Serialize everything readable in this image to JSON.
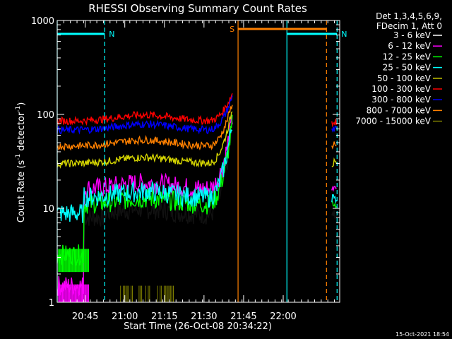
{
  "chart_data": {
    "type": "line",
    "title": "RHESSI Observing Summary Count Rates",
    "xlabel": "Start Time (26-Oct-08 20:34:22)",
    "ylabel_main": "Count Rate (s",
    "ylabel_sup1": "-1",
    "ylabel_mid": " detector",
    "ylabel_sup2": "-1",
    "ylabel_end": ")",
    "yscale": "log",
    "ylim": [
      1,
      1000
    ],
    "xlim_minutes": [
      0,
      107
    ],
    "xticks": [
      {
        "label": "20:45",
        "t": 10.6
      },
      {
        "label": "21:00",
        "t": 25.6
      },
      {
        "label": "21:15",
        "t": 40.6
      },
      {
        "label": "21:30",
        "t": 55.6
      },
      {
        "label": "21:45",
        "t": 70.6
      },
      {
        "label": "22:00",
        "t": 85.6
      }
    ],
    "yticks": [
      {
        "label": "1",
        "v": 1
      },
      {
        "label": "10",
        "v": 10
      },
      {
        "label": "100",
        "v": 100
      },
      {
        "label": "1000",
        "v": 1000
      }
    ],
    "legend_header": [
      "Det 1,3,4,5,6,9,",
      "FDecim 1, Att 0"
    ],
    "legend_position": "right",
    "series": [
      {
        "name": "3 - 6 keV",
        "color": "#000000",
        "level": 8.5
      },
      {
        "name": "6 - 12 keV",
        "color": "#ff00ff",
        "level": 16
      },
      {
        "name": "12 - 25 keV",
        "color": "#00ff00",
        "level": 11
      },
      {
        "name": "25 - 50 keV",
        "color": "#00ffff",
        "level": 13
      },
      {
        "name": "50 - 100 keV",
        "color": "#d4d400",
        "level": 30
      },
      {
        "name": "100 - 300 keV",
        "color": "#ff0000",
        "level": 85
      },
      {
        "name": "300 - 800 keV",
        "color": "#0000ff",
        "level": 68
      },
      {
        "name": "800 - 7000 keV",
        "color": "#ff8000",
        "level": 46
      },
      {
        "name": "7000 - 15000 keV",
        "color": "#808000",
        "level": 1.2
      }
    ],
    "intervals": [
      {
        "label": "N",
        "color": "#00ffff",
        "start": 0,
        "end": 18,
        "solid": 0
      },
      {
        "label": "N",
        "color": "#00ffff",
        "start": 87,
        "end": 106,
        "solid": 87
      },
      {
        "label": "S",
        "color": "#ff8000",
        "start": 68.5,
        "end": 102,
        "solid": 68.5
      }
    ]
  },
  "footer_date": "15-Oct-2021 18:54"
}
